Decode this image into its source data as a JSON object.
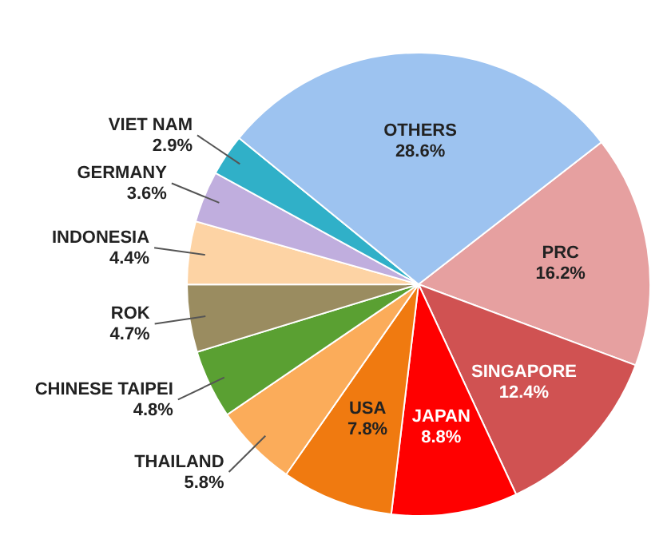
{
  "chart_data": {
    "type": "pie",
    "categories": [
      "PRC",
      "SINGAPORE",
      "JAPAN",
      "USA",
      "THAILAND",
      "CHINESE TAIPEI",
      "ROK",
      "INDONESIA",
      "GERMANY",
      "VIET NAM",
      "OTHERS"
    ],
    "values": [
      16.2,
      12.4,
      8.8,
      7.8,
      5.8,
      4.8,
      4.7,
      4.4,
      3.6,
      2.9,
      28.6
    ],
    "value_labels": [
      "16.2%",
      "12.4%",
      "8.8%",
      "7.8%",
      "5.8%",
      "4.8%",
      "4.7%",
      "4.4%",
      "3.6%",
      "2.9%",
      "28.6%"
    ],
    "colors": [
      "#e6a0a0",
      "#d05252",
      "#ff0000",
      "#f07a10",
      "#fbac5a",
      "#5aa032",
      "#9a8c60",
      "#fdd3a4",
      "#c0aede",
      "#30b0c8",
      "#9dc3f0"
    ]
  }
}
